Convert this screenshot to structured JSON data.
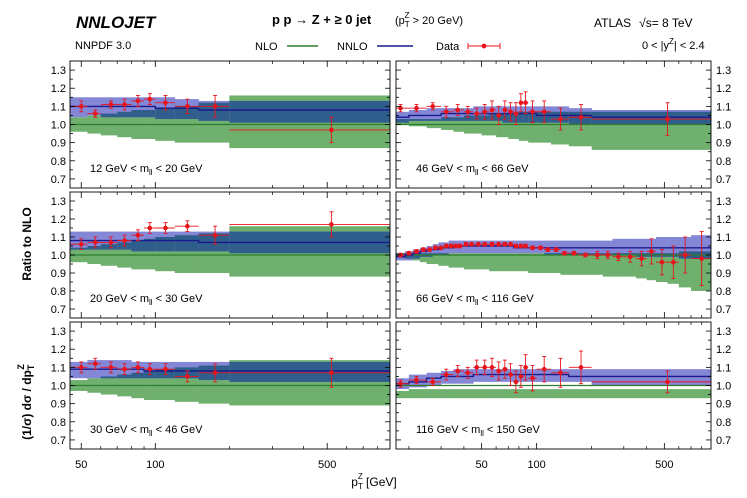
{
  "header": {
    "brand": "NNLOJET",
    "process": "p p → Z + ≥ 0 jet",
    "cut": "(p",
    "cut_sup": "Z",
    "cut_sub": "T",
    "cut_rest": " > 20 GeV)",
    "experiment": "ATLAS",
    "energy_pre": "√s",
    "energy_post": "= 8 TeV",
    "pdf": "NNPDF 3.0",
    "rapidity_pre": "0 < |y",
    "rapidity_sup": "Z",
    "rapidity_post": "| < 2.4"
  },
  "legend": {
    "nlo": "NLO",
    "nnlo": "NNLO",
    "data": "Data"
  },
  "colors": {
    "nlo_fill": "#6fb06f",
    "nlo_line": "#2e7d2e",
    "nnlo_fill": "#8486d6",
    "nnlo_line": "#1a1a8c",
    "overlap": "#2f5e8c",
    "data": "#e8141b"
  },
  "axes": {
    "ylabel_a": "(1/σ) dσ / dp",
    "ylabel_a_sub": "T",
    "ylabel_a_sup": "Z",
    "ylabel_b": "Ratio to NLO",
    "xlabel": "p",
    "xlabel_sub": "T",
    "xlabel_sup": "Z",
    "xlabel_unit": " [GeV]",
    "yticks": [
      "0.7",
      "0.8",
      "0.9",
      "1.0",
      "1.1",
      "1.2",
      "1.3"
    ]
  },
  "chart_data": [
    {
      "type": "line",
      "label": "12 GeV < m",
      "label_sub": "ll",
      "label_post": " < 20 GeV",
      "xlim": [
        45,
        900
      ],
      "ylim": [
        0.65,
        1.35
      ],
      "xscale": "log",
      "xticks": [
        "50",
        "100",
        "500"
      ],
      "edges": [
        45,
        53,
        60,
        70,
        80,
        90,
        100,
        120,
        150,
        200,
        900
      ],
      "nlo_lo": [
        0.96,
        0.95,
        0.94,
        0.93,
        0.92,
        0.92,
        0.91,
        0.9,
        0.9,
        0.87
      ],
      "nlo_hi": [
        1.04,
        1.05,
        1.06,
        1.07,
        1.08,
        1.08,
        1.09,
        1.1,
        1.12,
        1.16
      ],
      "nnlo_lo": [
        1.04,
        1.05,
        1.04,
        1.04,
        1.04,
        1.04,
        1.03,
        1.03,
        1.02,
        1.01
      ],
      "nnlo_hi": [
        1.15,
        1.15,
        1.15,
        1.15,
        1.15,
        1.15,
        1.15,
        1.14,
        1.13,
        1.13
      ],
      "nnlo_c": [
        1.1,
        1.1,
        1.1,
        1.1,
        1.1,
        1.1,
        1.09,
        1.09,
        1.08,
        1.08
      ],
      "data_x": [
        50,
        57,
        66,
        75,
        85,
        95,
        110,
        135,
        175,
        520
      ],
      "data_y": [
        1.1,
        1.06,
        1.11,
        1.11,
        1.13,
        1.14,
        1.12,
        1.1,
        1.1,
        0.97
      ],
      "data_err": [
        0.03,
        0.02,
        0.02,
        0.03,
        0.03,
        0.03,
        0.04,
        0.04,
        0.06,
        0.07
      ]
    },
    {
      "type": "line",
      "label": "46 GeV < m",
      "label_sub": "ll",
      "label_post": " < 66 GeV",
      "xlim": [
        17,
        900
      ],
      "ylim": [
        0.65,
        1.35
      ],
      "xscale": "log",
      "xticks": [
        "50",
        "100",
        "500"
      ],
      "edges": [
        17,
        20,
        25,
        30,
        35,
        40,
        45,
        50,
        55,
        60,
        65,
        70,
        75,
        80,
        85,
        90,
        100,
        120,
        150,
        200,
        900
      ],
      "nlo_lo": [
        1.0,
        0.99,
        0.98,
        0.97,
        0.96,
        0.95,
        0.95,
        0.94,
        0.94,
        0.93,
        0.93,
        0.92,
        0.92,
        0.91,
        0.91,
        0.9,
        0.9,
        0.89,
        0.88,
        0.86
      ],
      "nlo_hi": [
        1.03,
        1.03,
        1.03,
        1.04,
        1.04,
        1.05,
        1.05,
        1.05,
        1.06,
        1.06,
        1.06,
        1.06,
        1.07,
        1.07,
        1.07,
        1.07,
        1.07,
        1.07,
        1.07,
        1.07
      ],
      "nnlo_lo": [
        1.01,
        1.02,
        1.02,
        1.02,
        1.02,
        1.02,
        1.02,
        1.02,
        1.02,
        1.02,
        1.01,
        1.01,
        1.01,
        1.01,
        1.01,
        1.01,
        1.01,
        1.01,
        1.0,
        1.0
      ],
      "nnlo_hi": [
        1.07,
        1.08,
        1.09,
        1.09,
        1.09,
        1.09,
        1.1,
        1.1,
        1.1,
        1.1,
        1.1,
        1.1,
        1.1,
        1.1,
        1.1,
        1.1,
        1.1,
        1.1,
        1.09,
        1.08
      ],
      "nnlo_c": [
        1.04,
        1.05,
        1.05,
        1.06,
        1.06,
        1.06,
        1.06,
        1.06,
        1.06,
        1.06,
        1.06,
        1.06,
        1.06,
        1.06,
        1.06,
        1.06,
        1.05,
        1.05,
        1.05,
        1.04
      ],
      "data_x": [
        18,
        22,
        27,
        32,
        37,
        42,
        47,
        52,
        57,
        62,
        67,
        72,
        77,
        82,
        87,
        95,
        110,
        135,
        175,
        520
      ],
      "data_y": [
        1.09,
        1.09,
        1.1,
        1.07,
        1.08,
        1.07,
        1.06,
        1.07,
        1.08,
        1.05,
        1.08,
        1.07,
        1.06,
        1.12,
        1.12,
        1.07,
        1.07,
        1.03,
        1.04,
        1.03
      ],
      "data_err": [
        0.02,
        0.02,
        0.02,
        0.03,
        0.03,
        0.03,
        0.03,
        0.04,
        0.05,
        0.05,
        0.05,
        0.05,
        0.06,
        0.05,
        0.06,
        0.06,
        0.06,
        0.06,
        0.07,
        0.09
      ]
    },
    {
      "type": "line",
      "label": "20 GeV < m",
      "label_sub": "ll",
      "label_post": " < 30 GeV",
      "xlim": [
        45,
        900
      ],
      "ylim": [
        0.65,
        1.35
      ],
      "xscale": "log",
      "xticks": [
        "50",
        "100",
        "500"
      ],
      "edges": [
        45,
        53,
        60,
        70,
        80,
        90,
        100,
        120,
        150,
        200,
        900
      ],
      "nlo_lo": [
        0.96,
        0.95,
        0.94,
        0.93,
        0.92,
        0.92,
        0.91,
        0.9,
        0.9,
        0.88
      ],
      "nlo_hi": [
        1.04,
        1.05,
        1.06,
        1.07,
        1.08,
        1.09,
        1.1,
        1.11,
        1.12,
        1.16
      ],
      "nnlo_lo": [
        1.03,
        1.03,
        1.03,
        1.03,
        1.02,
        1.02,
        1.02,
        1.02,
        1.02,
        1.01
      ],
      "nnlo_hi": [
        1.13,
        1.13,
        1.13,
        1.13,
        1.13,
        1.13,
        1.13,
        1.13,
        1.13,
        1.13
      ],
      "nnlo_c": [
        1.08,
        1.08,
        1.08,
        1.08,
        1.08,
        1.08,
        1.08,
        1.08,
        1.07,
        1.07
      ],
      "data_x": [
        50,
        57,
        66,
        75,
        85,
        95,
        110,
        135,
        175,
        520
      ],
      "data_y": [
        1.06,
        1.07,
        1.07,
        1.08,
        1.11,
        1.15,
        1.15,
        1.16,
        1.11,
        1.17
      ],
      "data_err": [
        0.03,
        0.03,
        0.03,
        0.03,
        0.03,
        0.03,
        0.03,
        0.03,
        0.05,
        0.07
      ]
    },
    {
      "type": "line",
      "label": "66 GeV < m",
      "label_sub": "ll",
      "label_post": " < 116 GeV",
      "xlim": [
        17,
        900
      ],
      "ylim": [
        0.65,
        1.35
      ],
      "xscale": "log",
      "xticks": [
        "50",
        "100",
        "500"
      ],
      "edges": [
        17,
        19,
        21,
        23,
        25,
        27,
        29,
        31,
        33,
        35,
        37,
        40,
        43,
        46,
        50,
        55,
        60,
        65,
        70,
        75,
        80,
        85,
        90,
        100,
        110,
        120,
        135,
        150,
        170,
        200,
        230,
        260,
        300,
        350,
        400,
        450,
        520,
        600,
        700,
        900
      ],
      "nlo_lo": [
        0.99,
        0.98,
        0.97,
        0.96,
        0.95,
        0.95,
        0.94,
        0.94,
        0.93,
        0.93,
        0.93,
        0.92,
        0.92,
        0.92,
        0.92,
        0.91,
        0.91,
        0.91,
        0.91,
        0.91,
        0.91,
        0.91,
        0.9,
        0.9,
        0.9,
        0.9,
        0.89,
        0.89,
        0.89,
        0.89,
        0.88,
        0.88,
        0.88,
        0.87,
        0.86,
        0.85,
        0.84,
        0.82,
        0.8
      ],
      "nlo_hi": [
        1.01,
        1.01,
        1.01,
        1.01,
        1.01,
        1.01,
        1.01,
        1.01,
        1.01,
        1.01,
        1.01,
        1.01,
        1.01,
        1.01,
        1.01,
        1.01,
        1.01,
        1.01,
        1.01,
        1.01,
        1.01,
        1.01,
        1.01,
        1.01,
        1.01,
        1.01,
        1.01,
        1.01,
        1.01,
        1.01,
        1.01,
        1.01,
        1.01,
        1.01,
        1.01,
        1.01,
        1.01,
        1.02,
        1.02
      ],
      "nnlo_lo": [
        0.97,
        0.97,
        0.98,
        0.99,
        0.99,
        1.0,
        1.0,
        1.0,
        1.01,
        1.01,
        1.01,
        1.01,
        1.01,
        1.01,
        1.01,
        1.01,
        1.01,
        1.01,
        1.01,
        1.01,
        1.01,
        1.01,
        1.01,
        1.01,
        1.0,
        1.0,
        1.0,
        1.0,
        1.0,
        1.0,
        1.0,
        1.0,
        1.0,
        0.99,
        0.99,
        0.99,
        0.99,
        0.98,
        0.98
      ],
      "nnlo_hi": [
        1.01,
        1.02,
        1.03,
        1.04,
        1.05,
        1.06,
        1.07,
        1.07,
        1.08,
        1.08,
        1.08,
        1.08,
        1.08,
        1.08,
        1.08,
        1.08,
        1.08,
        1.08,
        1.08,
        1.08,
        1.08,
        1.08,
        1.08,
        1.08,
        1.08,
        1.08,
        1.08,
        1.08,
        1.08,
        1.08,
        1.08,
        1.09,
        1.09,
        1.09,
        1.09,
        1.1,
        1.1,
        1.1,
        1.11
      ],
      "nnlo_c": [
        0.99,
        1.0,
        1.01,
        1.02,
        1.03,
        1.03,
        1.04,
        1.04,
        1.04,
        1.05,
        1.05,
        1.05,
        1.05,
        1.05,
        1.05,
        1.05,
        1.05,
        1.05,
        1.05,
        1.04,
        1.04,
        1.04,
        1.04,
        1.04,
        1.04,
        1.04,
        1.04,
        1.04,
        1.04,
        1.04,
        1.04,
        1.04,
        1.04,
        1.04,
        1.04,
        1.04,
        1.04,
        1.04,
        1.04
      ],
      "data_x": [
        18,
        20,
        22,
        24,
        26,
        28,
        30,
        32,
        34,
        36,
        38,
        41,
        44,
        48,
        52,
        57,
        62,
        67,
        72,
        77,
        82,
        87,
        95,
        105,
        115,
        128,
        142,
        160,
        185,
        215,
        245,
        280,
        325,
        375,
        425,
        485,
        560,
        650,
        800
      ],
      "data_y": [
        1.0,
        1.01,
        1.02,
        1.03,
        1.03,
        1.04,
        1.04,
        1.05,
        1.05,
        1.05,
        1.05,
        1.06,
        1.06,
        1.06,
        1.06,
        1.06,
        1.06,
        1.06,
        1.06,
        1.05,
        1.05,
        1.05,
        1.04,
        1.04,
        1.03,
        1.03,
        1.01,
        1.01,
        1.0,
        1.0,
        1.0,
        0.99,
        0.99,
        0.98,
        1.02,
        0.96,
        0.96,
        1.0,
        0.98
      ],
      "data_err": [
        0.01,
        0.01,
        0.01,
        0.01,
        0.01,
        0.01,
        0.01,
        0.01,
        0.01,
        0.01,
        0.01,
        0.01,
        0.01,
        0.01,
        0.01,
        0.01,
        0.01,
        0.01,
        0.01,
        0.01,
        0.01,
        0.01,
        0.01,
        0.01,
        0.01,
        0.01,
        0.01,
        0.01,
        0.01,
        0.02,
        0.02,
        0.02,
        0.03,
        0.04,
        0.07,
        0.07,
        0.09,
        0.1,
        0.15
      ]
    },
    {
      "type": "line",
      "label": "30 GeV < m",
      "label_sub": "ll",
      "label_post": " < 46 GeV",
      "xlim": [
        45,
        900
      ],
      "ylim": [
        0.65,
        1.35
      ],
      "xscale": "log",
      "xticks": [
        "50",
        "100",
        "500"
      ],
      "edges": [
        45,
        53,
        60,
        70,
        80,
        90,
        100,
        120,
        150,
        200,
        900
      ],
      "nlo_lo": [
        0.97,
        0.96,
        0.95,
        0.94,
        0.93,
        0.92,
        0.92,
        0.91,
        0.9,
        0.89
      ],
      "nlo_hi": [
        1.03,
        1.04,
        1.05,
        1.06,
        1.07,
        1.08,
        1.09,
        1.1,
        1.11,
        1.14
      ],
      "nnlo_lo": [
        1.04,
        1.04,
        1.04,
        1.04,
        1.04,
        1.04,
        1.04,
        1.04,
        1.03,
        1.02
      ],
      "nnlo_hi": [
        1.13,
        1.14,
        1.14,
        1.14,
        1.13,
        1.13,
        1.13,
        1.13,
        1.13,
        1.13
      ],
      "nnlo_c": [
        1.09,
        1.09,
        1.09,
        1.09,
        1.09,
        1.08,
        1.08,
        1.08,
        1.08,
        1.08
      ],
      "data_x": [
        50,
        57,
        66,
        75,
        85,
        95,
        110,
        135,
        175,
        520
      ],
      "data_y": [
        1.1,
        1.12,
        1.1,
        1.09,
        1.1,
        1.09,
        1.09,
        1.05,
        1.07,
        1.07
      ],
      "data_err": [
        0.03,
        0.03,
        0.03,
        0.03,
        0.03,
        0.03,
        0.03,
        0.03,
        0.05,
        0.08
      ]
    },
    {
      "type": "line",
      "label": "116 GeV < m",
      "label_sub": "ll",
      "label_post": " < 150 GeV",
      "xlim": [
        17,
        900
      ],
      "ylim": [
        0.65,
        1.35
      ],
      "xscale": "log",
      "xticks": [
        "50",
        "100",
        "500"
      ],
      "edges": [
        17,
        20,
        25,
        30,
        35,
        40,
        45,
        50,
        55,
        60,
        65,
        70,
        75,
        80,
        85,
        90,
        100,
        120,
        150,
        200,
        900
      ],
      "nlo_lo": [
        0.93,
        0.93,
        0.93,
        0.93,
        0.93,
        0.93,
        0.93,
        0.93,
        0.93,
        0.93,
        0.93,
        0.93,
        0.93,
        0.93,
        0.93,
        0.93,
        0.93,
        0.93,
        0.93,
        0.93
      ],
      "nlo_hi": [
        0.97,
        0.98,
        0.98,
        0.98,
        0.98,
        0.98,
        0.98,
        0.98,
        0.98,
        0.98,
        0.98,
        0.98,
        0.98,
        0.98,
        0.98,
        0.98,
        0.98,
        0.98,
        0.98,
        0.98
      ],
      "nnlo_lo": [
        0.98,
        0.99,
        1.0,
        1.01,
        1.01,
        1.01,
        1.02,
        1.02,
        1.02,
        1.02,
        1.02,
        1.02,
        1.02,
        1.02,
        1.02,
        1.02,
        1.02,
        1.02,
        1.02,
        1.0
      ],
      "nnlo_hi": [
        1.04,
        1.06,
        1.07,
        1.08,
        1.09,
        1.09,
        1.09,
        1.09,
        1.09,
        1.09,
        1.09,
        1.09,
        1.09,
        1.09,
        1.09,
        1.09,
        1.09,
        1.09,
        1.09,
        1.09
      ],
      "nnlo_c": [
        1.01,
        1.02,
        1.04,
        1.05,
        1.05,
        1.05,
        1.06,
        1.06,
        1.06,
        1.06,
        1.06,
        1.06,
        1.06,
        1.06,
        1.06,
        1.06,
        1.06,
        1.06,
        1.05,
        1.05
      ],
      "data_x": [
        18,
        22,
        27,
        32,
        37,
        42,
        47,
        52,
        57,
        62,
        67,
        72,
        77,
        82,
        87,
        95,
        110,
        135,
        175,
        520
      ],
      "data_y": [
        1.01,
        1.03,
        1.02,
        1.06,
        1.08,
        1.07,
        1.1,
        1.1,
        1.1,
        1.08,
        1.09,
        1.06,
        1.02,
        1.05,
        1.1,
        1.04,
        1.09,
        1.07,
        1.1,
        1.02
      ],
      "data_err": [
        0.02,
        0.02,
        0.02,
        0.03,
        0.03,
        0.03,
        0.04,
        0.04,
        0.05,
        0.05,
        0.05,
        0.06,
        0.06,
        0.06,
        0.07,
        0.07,
        0.07,
        0.08,
        0.09,
        0.06
      ]
    }
  ]
}
